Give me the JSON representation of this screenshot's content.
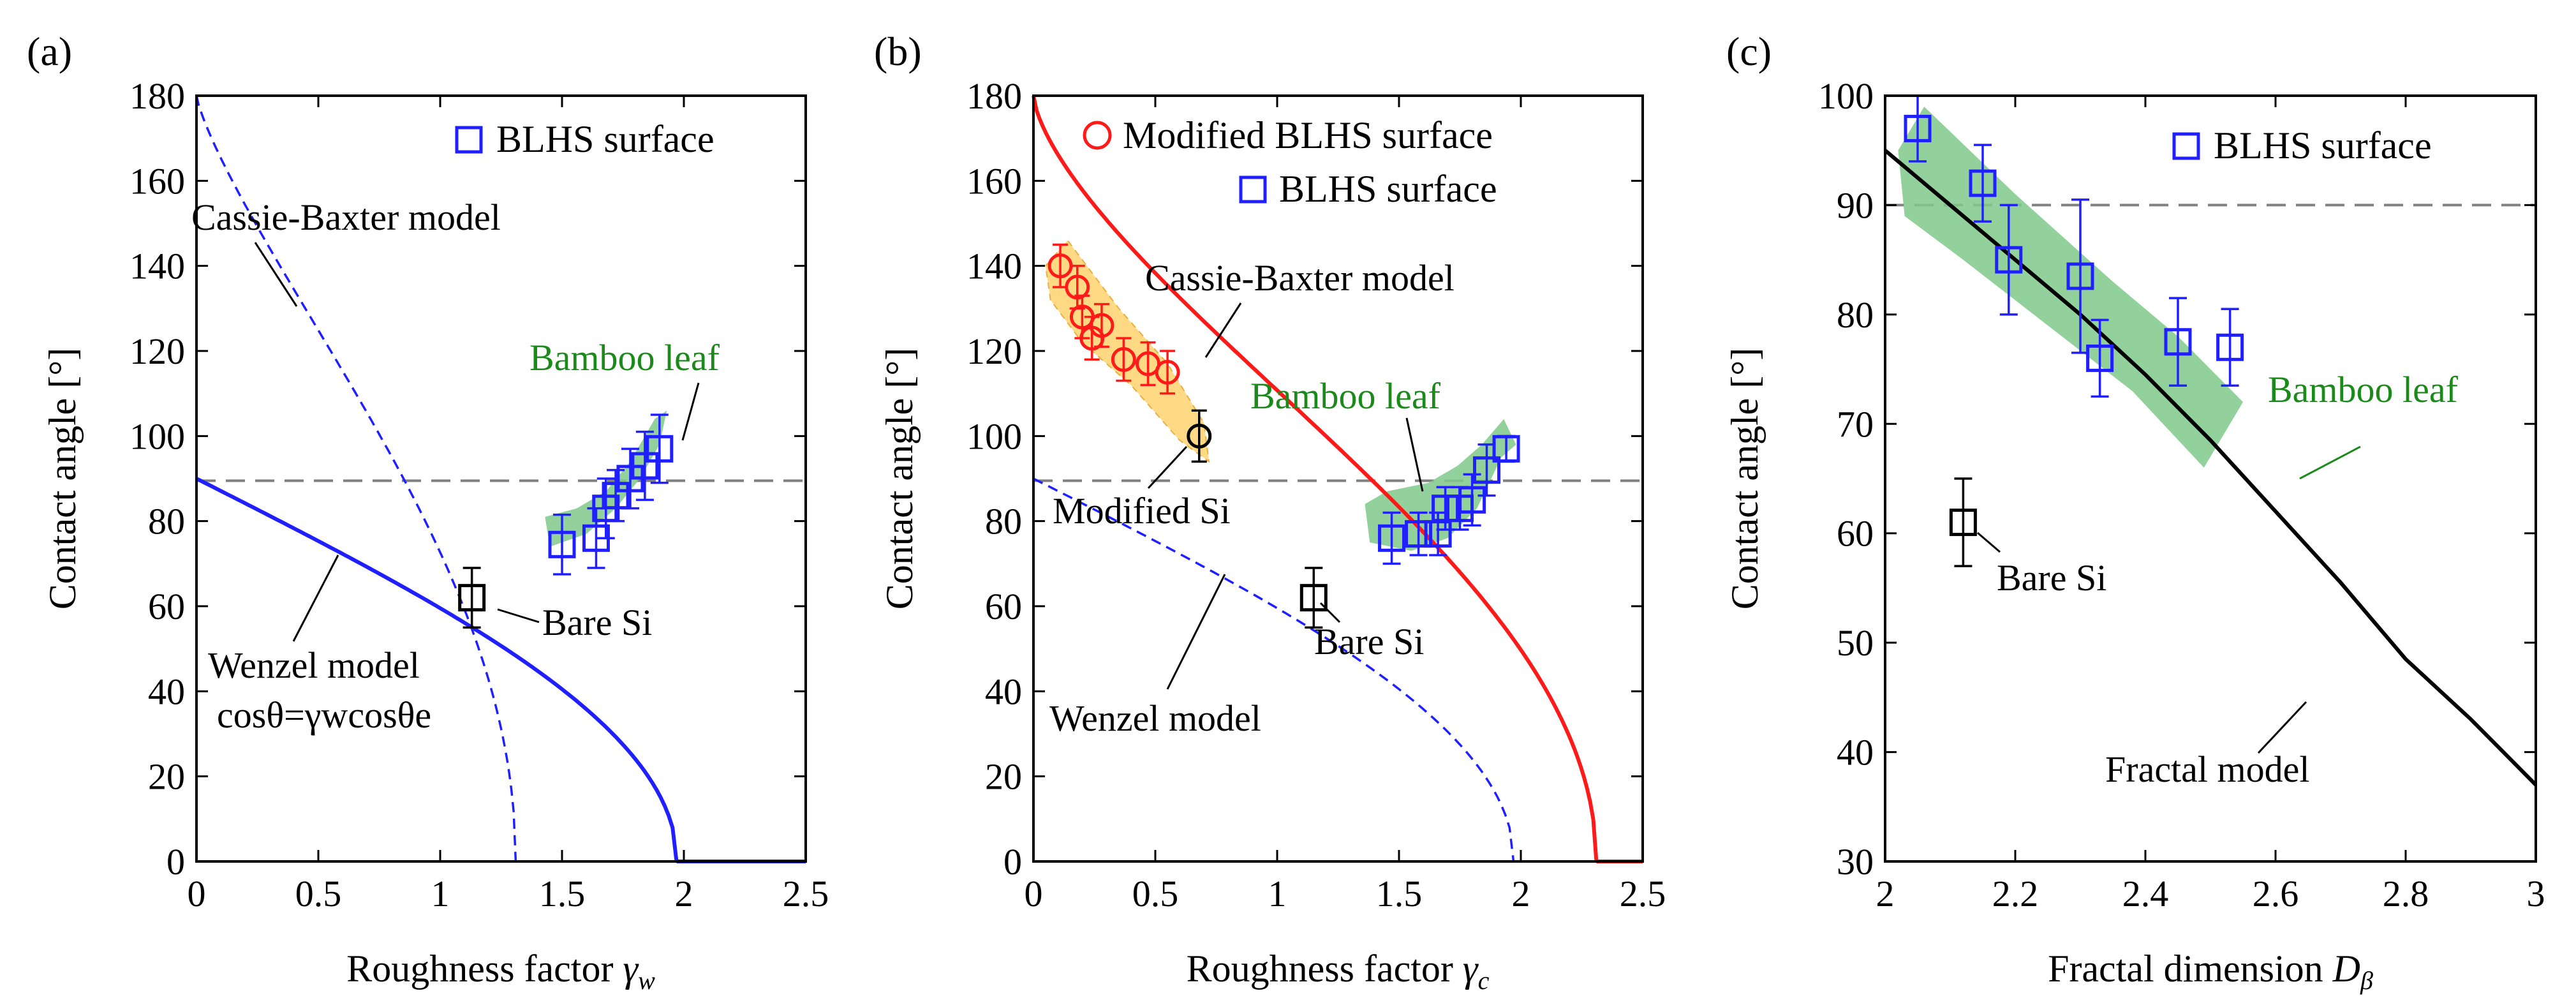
{
  "colors": {
    "blue": "#1f1fff",
    "red": "#ff1a1a",
    "green_text": "#1b8a1b",
    "green_band": "#7fc98a",
    "orange_band": "#ffd983",
    "gray_dash": "#808080",
    "black": "#000000"
  },
  "chart_data": [
    {
      "panel": "(a)",
      "type": "scatter",
      "xlabel_main": "Roughness factor ",
      "xlabel_sym": "γ",
      "xlabel_sub": "w",
      "ylabel": "Contact angle [°]",
      "xlim": [
        0,
        2.5
      ],
      "ylim": [
        0,
        180
      ],
      "xticks": [
        "0",
        "0.5",
        "1",
        "1.5",
        "2",
        "2.5"
      ],
      "xtick_values": [
        0,
        0.5,
        1,
        1.5,
        2,
        2.5
      ],
      "yticks": [
        "0",
        "20",
        "40",
        "60",
        "80",
        "100",
        "120",
        "140",
        "160",
        "180"
      ],
      "ytick_values": [
        0,
        20,
        40,
        60,
        80,
        100,
        120,
        140,
        160,
        180
      ],
      "legend": [
        {
          "label": "BLHS surface",
          "marker": "square",
          "color": "blue"
        }
      ],
      "reference_line_y": 89.5,
      "series": [
        {
          "name": "BLHS surface",
          "marker": "square",
          "x": [
            1.5,
            1.64,
            1.68,
            1.72,
            1.78,
            1.84,
            1.9
          ],
          "y": [
            74.5,
            76,
            83,
            86,
            90,
            93,
            97
          ],
          "err": [
            7,
            7,
            7,
            6,
            7,
            8,
            8
          ]
        },
        {
          "name": "Bare Si",
          "marker": "square",
          "x": [
            1.13
          ],
          "y": [
            62
          ],
          "err": [
            7
          ]
        }
      ],
      "curves": [
        {
          "name": "Wenzel model",
          "style": "solid",
          "x0": 0,
          "x1": 1.97,
          "theta_e": 90,
          "kind": "wenzel"
        },
        {
          "name": "Cassie-Baxter model",
          "style": "dashed",
          "x0": 0,
          "x1": 1.31,
          "kind": "cassie"
        }
      ],
      "band": {
        "points": [
          [
            1.45,
            74
          ],
          [
            1.6,
            77
          ],
          [
            1.72,
            83
          ],
          [
            1.82,
            90
          ],
          [
            1.9,
            98
          ],
          [
            1.93,
            106
          ],
          [
            1.88,
            104
          ],
          [
            1.78,
            94
          ],
          [
            1.68,
            87
          ],
          [
            1.56,
            83
          ],
          [
            1.43,
            81
          ]
        ]
      },
      "annotations": {
        "cassie": "Cassie-Baxter model",
        "wenzel": "Wenzel model",
        "equation": "cosθ=γwcosθe",
        "bare_si": "Bare Si",
        "bamboo": "Bamboo leaf"
      }
    },
    {
      "panel": "(b)",
      "type": "scatter",
      "xlabel_main": "Roughness factor ",
      "xlabel_sym": "γ",
      "xlabel_sub": "c",
      "ylabel": "Contact angle [°]",
      "xlim": [
        0,
        2.5
      ],
      "ylim": [
        0,
        180
      ],
      "xticks": [
        "0",
        "0.5",
        "1",
        "1.5",
        "2",
        "2.5"
      ],
      "xtick_values": [
        0,
        0.5,
        1,
        1.5,
        2,
        2.5
      ],
      "yticks": [
        "0",
        "20",
        "40",
        "60",
        "80",
        "100",
        "120",
        "140",
        "160",
        "180"
      ],
      "ytick_values": [
        0,
        20,
        40,
        60,
        80,
        100,
        120,
        140,
        160,
        180
      ],
      "legend": [
        {
          "label": "Modified BLHS surface",
          "marker": "circle",
          "color": "red"
        },
        {
          "label": "BLHS surface",
          "marker": "square",
          "color": "blue"
        }
      ],
      "reference_line_y": 89.5,
      "series": [
        {
          "name": "Modified BLHS surface",
          "marker": "circle",
          "x": [
            0.11,
            0.18,
            0.2,
            0.24,
            0.28,
            0.37,
            0.47,
            0.55
          ],
          "y": [
            140,
            135,
            128,
            123,
            126,
            118,
            117,
            115
          ],
          "err": [
            5,
            5,
            5,
            5,
            5,
            5,
            5,
            5
          ]
        },
        {
          "name": "Modified Si",
          "marker": "circle",
          "x": [
            0.68
          ],
          "y": [
            100
          ],
          "err": [
            6
          ]
        },
        {
          "name": "BLHS surface",
          "marker": "square",
          "x": [
            1.47,
            1.58,
            1.66,
            1.69,
            1.75,
            1.8,
            1.86,
            1.94
          ],
          "y": [
            76,
            77,
            77,
            83,
            83,
            85,
            92,
            97
          ],
          "err": [
            6,
            5,
            5,
            5,
            5,
            6,
            6,
            3
          ]
        },
        {
          "name": "Bare Si",
          "marker": "square",
          "x": [
            1.15
          ],
          "y": [
            62
          ],
          "err": [
            7
          ]
        }
      ],
      "curves": [
        {
          "name": "Cassie-Baxter model",
          "style": "solid",
          "color": "red",
          "kind": "cb_red"
        },
        {
          "name": "Wenzel model",
          "style": "dashed",
          "kind": "wenzel_dash"
        }
      ],
      "annotations": {
        "cassie": "Cassie-Baxter model",
        "wenzel": "Wenzel model",
        "modified_si": "Modified Si",
        "bare_si": "Bare Si",
        "bamboo": "Bamboo leaf"
      }
    },
    {
      "panel": "(c)",
      "type": "scatter",
      "xlabel_main": "Fractal dimension ",
      "xlabel_sym": "D",
      "xlabel_sub": "β",
      "ylabel": "Contact angle [°]",
      "xlim": [
        2,
        3
      ],
      "ylim": [
        30,
        100
      ],
      "xticks": [
        "2",
        "2.2",
        "2.4",
        "2.6",
        "2.8",
        "3"
      ],
      "xtick_values": [
        2,
        2.2,
        2.4,
        2.6,
        2.8,
        3
      ],
      "yticks": [
        "30",
        "40",
        "50",
        "60",
        "70",
        "80",
        "90",
        "100"
      ],
      "ytick_values": [
        30,
        40,
        50,
        60,
        70,
        80,
        90,
        100
      ],
      "legend": [
        {
          "label": "BLHS surface",
          "marker": "square",
          "color": "blue"
        }
      ],
      "reference_line_y": 90,
      "series": [
        {
          "name": "BLHS surface",
          "marker": "square",
          "x": [
            2.05,
            2.15,
            2.19,
            2.3,
            2.33,
            2.45,
            2.53
          ],
          "y": [
            97,
            92,
            85,
            83.5,
            76,
            77.5,
            77
          ],
          "err": [
            3,
            3.5,
            5,
            7,
            3.5,
            4,
            3.5
          ]
        },
        {
          "name": "Bare Si",
          "marker": "square",
          "x": [
            2.12
          ],
          "y": [
            61
          ],
          "err": [
            4
          ]
        }
      ],
      "curves": [
        {
          "name": "Fractal model",
          "style": "solid",
          "color": "black",
          "x": [
            2.0,
            2.1,
            2.2,
            2.3,
            2.4,
            2.5,
            2.6,
            2.7,
            2.8,
            2.9,
            3.0
          ],
          "y": [
            95,
            90,
            85,
            80,
            74.5,
            68.5,
            62,
            55.5,
            48.5,
            43,
            37
          ]
        }
      ],
      "annotations": {
        "fractal": "Fractal model",
        "bare_si": "Bare Si",
        "bamboo": "Bamboo leaf"
      }
    }
  ]
}
